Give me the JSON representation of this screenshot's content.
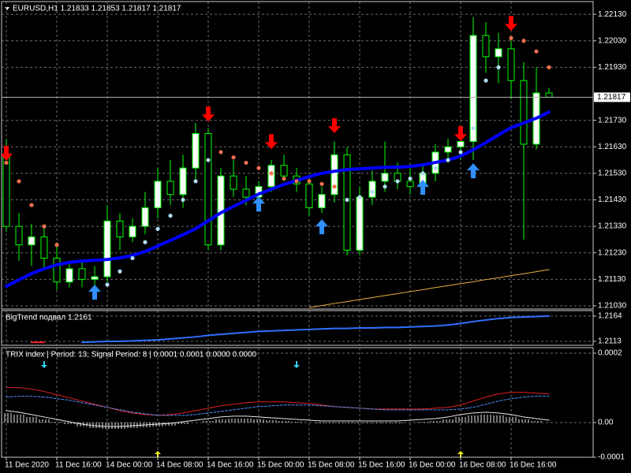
{
  "chart_data": [
    {
      "type": "candlestick",
      "title": "EURUSD,H1  1.21833 1.21853 1.21817 1.21817",
      "categories": [
        "11 Dec 2020",
        null,
        null,
        null,
        "11 Dec 16:00",
        null,
        null,
        null,
        "14 Dec 00:00",
        null,
        null,
        null,
        "14 Dec 08:00",
        null,
        null,
        null,
        "14 Dec 16:00",
        null,
        null,
        null,
        "15 Dec 00:00",
        null,
        null,
        null,
        "15 Dec 08:00",
        null,
        null,
        null,
        "15 Dec 16:00",
        null,
        null,
        null,
        "16 Dec 00:00",
        null,
        null,
        null,
        "16 Dec 08:00",
        null,
        null,
        null,
        "16 Dec 16:00",
        null,
        null,
        null
      ],
      "open": [
        1.216,
        1.2133,
        1.2126,
        1.2129,
        1.2121,
        1.2112,
        1.2117,
        1.2113,
        1.2114,
        1.2135,
        1.2129,
        1.2133,
        1.214,
        1.215,
        1.2145,
        1.2155,
        1.2168,
        1.2126,
        1.2152,
        1.2147,
        1.2144,
        1.2148,
        1.2156,
        1.2152,
        1.2149,
        1.214,
        1.2145,
        1.216,
        1.2124,
        1.2144,
        1.215,
        1.2153,
        1.215,
        1.2148,
        1.2153,
        1.2161,
        1.2163,
        1.2165,
        1.2205,
        1.2197,
        1.22,
        1.2188,
        1.2164,
        1.21833
      ],
      "high": [
        1.2166,
        1.2138,
        1.2134,
        1.2133,
        1.2127,
        1.212,
        1.212,
        1.2118,
        1.2141,
        1.2138,
        1.2136,
        1.2146,
        1.2155,
        1.2158,
        1.216,
        1.2172,
        1.217,
        1.2155,
        1.2158,
        1.2152,
        1.215,
        1.2158,
        1.216,
        1.2155,
        1.2152,
        1.2148,
        1.2165,
        1.2163,
        1.2148,
        1.2154,
        1.2165,
        1.2157,
        1.2155,
        1.2156,
        1.2164,
        1.2166,
        1.2168,
        1.2212,
        1.221,
        1.2206,
        1.2203,
        1.2195,
        1.2193,
        1.21853
      ],
      "low": [
        1.2131,
        1.212,
        1.2118,
        1.2117,
        1.2109,
        1.211,
        1.211,
        1.2108,
        1.2112,
        1.2124,
        1.2127,
        1.213,
        1.2136,
        1.2141,
        1.214,
        1.215,
        1.2124,
        1.2124,
        1.2144,
        1.2141,
        1.2139,
        1.2146,
        1.215,
        1.2146,
        1.2137,
        1.2138,
        1.2142,
        1.2122,
        1.2122,
        1.2141,
        1.2146,
        1.2147,
        1.2145,
        1.2146,
        1.215,
        1.2157,
        1.2158,
        1.2158,
        1.2191,
        1.2187,
        1.2181,
        1.2128,
        1.2162,
        1.21817
      ],
      "close": [
        1.2133,
        1.2126,
        1.2129,
        1.2121,
        1.2112,
        1.2117,
        1.2113,
        1.2114,
        1.2135,
        1.2129,
        1.2133,
        1.214,
        1.215,
        1.2145,
        1.2155,
        1.2168,
        1.2126,
        1.2152,
        1.2147,
        1.2144,
        1.2148,
        1.2156,
        1.2152,
        1.2149,
        1.214,
        1.2145,
        1.216,
        1.2124,
        1.2144,
        1.215,
        1.2153,
        1.215,
        1.2148,
        1.2153,
        1.2161,
        1.2163,
        1.2165,
        1.2205,
        1.2197,
        1.22,
        1.2188,
        1.2164,
        1.21833,
        1.21817
      ],
      "ylim": [
        1.21018,
        1.22178
      ],
      "yticks": [
        {
          "value": 1.2213,
          "label": "1.22130"
        },
        {
          "value": 1.2203,
          "label": "1.22030"
        },
        {
          "value": 1.2193,
          "label": "1.21930"
        },
        {
          "value": 1.2173,
          "label": "1.21730"
        },
        {
          "value": 1.2163,
          "label": "1.21630"
        },
        {
          "value": 1.2153,
          "label": "1.21530"
        },
        {
          "value": 1.2143,
          "label": "1.21430"
        },
        {
          "value": 1.2133,
          "label": "1.21330"
        },
        {
          "value": 1.2123,
          "label": "1.21230"
        },
        {
          "value": 1.2113,
          "label": "1.21130"
        },
        {
          "value": 1.2103,
          "label": "1.21030"
        }
      ],
      "last_price": {
        "value": 1.21817,
        "label": "1.21817"
      },
      "grid": true,
      "series": [
        {
          "color": "#0000ff",
          "style": "line",
          "width": 4,
          "values": [
            1.21104,
            1.21128,
            1.21152,
            1.2117,
            1.21185,
            1.21194,
            1.21199,
            1.21202,
            1.21205,
            1.21211,
            1.2122,
            1.21235,
            1.21256,
            1.21277,
            1.21298,
            1.21321,
            1.21351,
            1.21381,
            1.21405,
            1.21428,
            1.21452,
            1.2147,
            1.21488,
            1.21503,
            1.21518,
            1.2153,
            1.21538,
            1.21544,
            1.21547,
            1.2155,
            1.21553,
            1.21553,
            1.21556,
            1.21562,
            1.21571,
            1.2158,
            1.21595,
            1.21619,
            1.21646,
            1.21675,
            1.21702,
            1.2172,
            1.21738,
            1.21761
          ]
        },
        {
          "color": "#e8b040",
          "style": "line",
          "width": 1,
          "values": [
            null,
            null,
            null,
            null,
            null,
            null,
            null,
            null,
            null,
            null,
            null,
            null,
            null,
            null,
            null,
            null,
            null,
            null,
            null,
            null,
            null,
            null,
            null,
            null,
            1.21024,
            1.21031,
            1.21039,
            1.21046,
            1.21054,
            1.21061,
            1.21069,
            1.21076,
            1.21084,
            1.21091,
            1.21099,
            1.21106,
            1.21114,
            1.21121,
            1.21129,
            1.21136,
            1.21144,
            1.21151,
            1.21159,
            1.21167
          ]
        },
        {
          "color": "#f07050",
          "style": "dots",
          "values": [
            1.2157,
            1.215,
            1.2141,
            1.2133,
            1.2126,
            null,
            null,
            null,
            null,
            null,
            null,
            null,
            null,
            null,
            null,
            null,
            null,
            1.2161,
            1.2159,
            1.2157,
            1.2155,
            1.2153,
            1.2151,
            1.215,
            1.215,
            1.2149,
            1.2148,
            null,
            null,
            null,
            null,
            null,
            null,
            null,
            null,
            null,
            null,
            null,
            null,
            null,
            1.2204,
            1.2203,
            1.2199,
            1.2193
          ]
        },
        {
          "color": "#b0dcf0",
          "style": "dots",
          "values": [
            null,
            null,
            null,
            null,
            null,
            null,
            null,
            1.2107,
            1.2111,
            1.2116,
            1.2121,
            1.2127,
            1.2132,
            1.2137,
            1.2143,
            1.215,
            1.2158,
            null,
            null,
            null,
            null,
            null,
            null,
            null,
            null,
            null,
            null,
            1.2143,
            1.2144,
            1.2146,
            1.2148,
            1.215,
            1.2151,
            1.2153,
            1.2155,
            1.2158,
            1.2161,
            1.217,
            1.2188,
            1.2193,
            null,
            null,
            null,
            null
          ]
        }
      ],
      "signals": [
        {
          "color": "#ff0000",
          "direction": "down",
          "index": [
            0,
            16,
            21,
            26,
            36,
            40
          ],
          "values": [
            1.21604,
            1.21752,
            1.21648,
            1.21708,
            1.21678,
            1.22094
          ]
        },
        {
          "color": "#3090ff",
          "direction": "up",
          "index": [
            7,
            20,
            25,
            33,
            37
          ],
          "values": [
            1.21083,
            1.21416,
            1.2133,
            1.21479,
            1.21541
          ]
        }
      ]
    },
    {
      "type": "line",
      "title": "BigTrend подвал 1.2161",
      "ylim": [
        1.2105,
        1.2175
      ],
      "yticks": [
        1.2164,
        1.2113
      ],
      "grid": true,
      "series": [
        {
          "color": "#ff2020",
          "style": "line",
          "width": 2,
          "values": [
            null,
            null,
            1.2111,
            1.2111,
            null,
            1.2111,
            null,
            null,
            null,
            null,
            null,
            null,
            null,
            null,
            null,
            null,
            null,
            null,
            null,
            null,
            null,
            null,
            null,
            null,
            null,
            null,
            null,
            null,
            null,
            null,
            null,
            null,
            null,
            null,
            null,
            null,
            null,
            null,
            null,
            null,
            null,
            null,
            null,
            null
          ]
        },
        {
          "color": "#3070ff",
          "style": "line",
          "width": 2,
          "values": [
            null,
            null,
            null,
            null,
            null,
            null,
            1.2111,
            1.2112,
            1.2113,
            1.2113,
            1.2114,
            1.2115,
            1.2116,
            1.2118,
            1.212,
            1.2122,
            1.2125,
            1.2127,
            1.2129,
            1.2131,
            1.2133,
            1.2134,
            1.2135,
            1.2136,
            1.2137,
            1.2138,
            1.2139,
            1.2139,
            1.214,
            1.214,
            1.2141,
            1.2141,
            1.2142,
            1.2143,
            1.2144,
            1.2146,
            1.2149,
            1.2153,
            1.2156,
            1.2159,
            1.2161,
            1.2162,
            1.2163,
            1.2164
          ]
        }
      ]
    },
    {
      "type": "line",
      "title": "TRIX index | Period: 13, Signal Period: 8 | 0.0001 0.0001 0.0000 0.0000",
      "ylim": [
        -0.0001,
        0.000216
      ],
      "yticks": [
        0.0002,
        {
          "value": 0,
          "label": "0.00"
        },
        -0.0001
      ],
      "grid": true,
      "series": [
        {
          "color": "#e02020",
          "style": "line",
          "width": 1,
          "values": [
            0.000101,
            0.000101,
            9.66e-05,
            8.97e-05,
            8.05e-05,
            7.13e-05,
            6.21e-05,
            5.29e-05,
            4.37e-05,
            3.45e-05,
            2.76e-05,
            2.3e-05,
            2.07e-05,
            2.3e-05,
            2.76e-05,
            3.45e-05,
            4.14e-05,
            4.83e-05,
            5.29e-05,
            5.75e-05,
            5.98e-05,
            5.98e-05,
            5.98e-05,
            5.75e-05,
            5.52e-05,
            5.06e-05,
            4.6e-05,
            4.37e-05,
            4.14e-05,
            3.91e-05,
            3.91e-05,
            3.91e-05,
            3.91e-05,
            3.91e-05,
            4.14e-05,
            4.37e-05,
            5.06e-05,
            6.21e-05,
            7.36e-05,
            8.28e-05,
            8.74e-05,
            8.74e-05,
            8.51e-05,
            8.28e-05
          ]
        },
        {
          "color": "#5090ff",
          "style": "dash",
          "width": 1,
          "values": [
            7.36e-05,
            7.59e-05,
            7.59e-05,
            7.36e-05,
            6.9e-05,
            6.44e-05,
            5.75e-05,
            5.06e-05,
            4.37e-05,
            3.68e-05,
            2.99e-05,
            2.53e-05,
            2.07e-05,
            2.07e-05,
            2.07e-05,
            2.3e-05,
            2.76e-05,
            3.22e-05,
            3.68e-05,
            4.14e-05,
            4.6e-05,
            4.83e-05,
            5.06e-05,
            5.06e-05,
            5.06e-05,
            4.83e-05,
            4.6e-05,
            4.37e-05,
            4.14e-05,
            3.91e-05,
            3.68e-05,
            3.68e-05,
            3.68e-05,
            3.68e-05,
            3.68e-05,
            3.68e-05,
            3.91e-05,
            4.37e-05,
            5.29e-05,
            6.21e-05,
            6.9e-05,
            7.36e-05,
            7.59e-05,
            7.59e-05
          ]
        },
        {
          "color": "#e8e8e8",
          "style": "histogram",
          "width": 1,
          "values": [
            3.45e-05,
            2.99e-05,
            2.3e-05,
            1.61e-05,
            9.2e-06,
            2.3e-06,
            -4.6e-06,
            -9.2e-06,
            -1.15e-05,
            -1.15e-05,
            -9.2e-06,
            -6.9e-06,
            -4.6e-06,
            -2.3e-06,
            2.3e-06,
            6.9e-06,
            1.15e-05,
            1.61e-05,
            1.84e-05,
            1.84e-05,
            1.61e-05,
            1.38e-05,
            1.15e-05,
            9.2e-06,
            6.9e-06,
            4.6e-06,
            4.6e-06,
            4.6e-06,
            4.6e-06,
            4.6e-06,
            4.6e-06,
            4.6e-06,
            6.9e-06,
            9.2e-06,
            1.15e-05,
            1.61e-05,
            2.3e-05,
            2.76e-05,
            2.99e-05,
            2.76e-05,
            2.3e-05,
            1.61e-05,
            1.15e-05,
            6.9e-06
          ]
        }
      ],
      "signals": [
        {
          "color": "#30d0f0",
          "direction": "down",
          "index": [
            3,
            23
          ]
        },
        {
          "color": "#f0f020",
          "direction": "up",
          "index": [
            12,
            36
          ]
        }
      ]
    }
  ]
}
